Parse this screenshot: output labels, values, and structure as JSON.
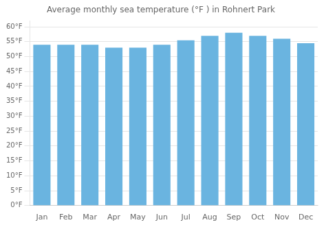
{
  "chart_data": {
    "type": "bar",
    "title": "Average monthly sea temperature (°F ) in Rohnert Park",
    "categories": [
      "Jan",
      "Feb",
      "Mar",
      "Apr",
      "May",
      "Jun",
      "Jul",
      "Aug",
      "Sep",
      "Oct",
      "Nov",
      "Dec"
    ],
    "values": [
      54.0,
      54.0,
      54.0,
      53.0,
      53.0,
      54.0,
      55.5,
      57.0,
      58.0,
      57.0,
      56.0,
      54.5
    ],
    "color": "#6ab4e0",
    "ylim": [
      0,
      62
    ],
    "yticks": [
      {
        "value": 0,
        "label": "0°F"
      },
      {
        "value": 5,
        "label": "5°F"
      },
      {
        "value": 10,
        "label": "10°F"
      },
      {
        "value": 15,
        "label": "15°F"
      },
      {
        "value": 20,
        "label": "20°F"
      },
      {
        "value": 25,
        "label": "25°F"
      },
      {
        "value": 30,
        "label": "30°F"
      },
      {
        "value": 35,
        "label": "35°F"
      },
      {
        "value": 40,
        "label": "40°F"
      },
      {
        "value": 45,
        "label": "45°F"
      },
      {
        "value": 50,
        "label": "50°F"
      },
      {
        "value": 55,
        "label": "55°F"
      },
      {
        "value": 60,
        "label": "60°F"
      }
    ],
    "grid": true
  }
}
